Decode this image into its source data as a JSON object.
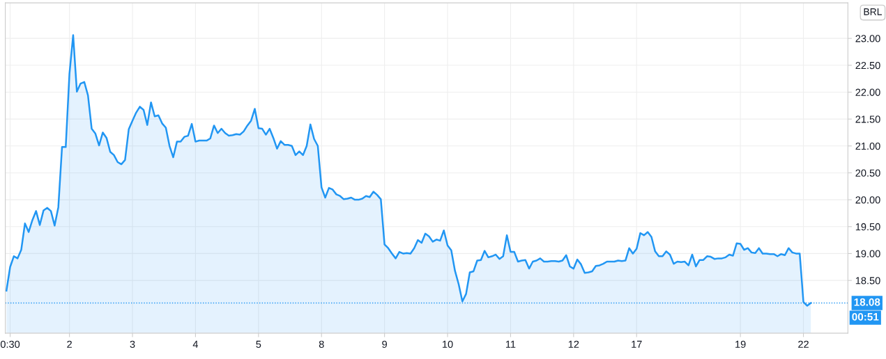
{
  "chart_data": {
    "type": "area",
    "categories": [
      null,
      "0:30",
      null,
      null,
      null,
      null,
      null,
      null,
      null,
      null,
      null,
      null,
      null,
      null,
      null,
      null,
      null,
      "2",
      null,
      null,
      null,
      null,
      null,
      null,
      null,
      null,
      null,
      null,
      null,
      null,
      null,
      null,
      null,
      null,
      "3",
      null,
      null,
      null,
      null,
      null,
      null,
      null,
      null,
      null,
      null,
      null,
      null,
      null,
      null,
      null,
      null,
      "4",
      null,
      null,
      null,
      null,
      null,
      null,
      null,
      null,
      null,
      null,
      null,
      null,
      null,
      null,
      null,
      null,
      "5",
      null,
      null,
      null,
      null,
      null,
      null,
      null,
      null,
      null,
      null,
      null,
      null,
      null,
      null,
      null,
      null,
      "8",
      null,
      null,
      null,
      null,
      null,
      null,
      null,
      null,
      null,
      null,
      null,
      null,
      null,
      null,
      null,
      null,
      "9",
      null,
      null,
      null,
      null,
      null,
      null,
      null,
      null,
      null,
      null,
      null,
      null,
      null,
      null,
      null,
      null,
      "10",
      null,
      null,
      null,
      null,
      null,
      null,
      null,
      null,
      null,
      null,
      null,
      null,
      null,
      null,
      null,
      null,
      "11",
      null,
      null,
      null,
      null,
      null,
      null,
      null,
      null,
      null,
      null,
      null,
      null,
      null,
      null,
      null,
      null,
      "12",
      null,
      null,
      null,
      null,
      null,
      null,
      null,
      null,
      null,
      null,
      null,
      null,
      null,
      null,
      null,
      null,
      "17",
      null,
      null,
      null,
      null,
      null,
      null,
      null,
      null,
      null,
      null,
      null,
      null,
      null,
      null,
      null,
      null,
      null,
      null,
      null,
      null,
      null,
      null,
      null,
      null,
      null,
      null,
      null,
      "19",
      null,
      null,
      null,
      null,
      null,
      null,
      null,
      null,
      null,
      null,
      null,
      null,
      null,
      null,
      null,
      null,
      "22",
      null,
      null
    ],
    "series": [
      {
        "color": "#2196f3",
        "values": [
          18.31,
          18.75,
          18.95,
          18.91,
          19.07,
          19.56,
          19.4,
          19.62,
          19.79,
          19.53,
          19.8,
          19.85,
          19.79,
          19.52,
          19.86,
          20.98,
          20.98,
          22.34,
          23.06,
          22.01,
          22.16,
          22.19,
          21.94,
          21.32,
          21.23,
          21.01,
          21.25,
          21.15,
          20.89,
          20.83,
          20.7,
          20.66,
          20.74,
          21.31,
          21.47,
          21.62,
          21.73,
          21.67,
          21.39,
          21.81,
          21.55,
          21.57,
          21.42,
          21.34,
          21.0,
          20.79,
          21.08,
          21.08,
          21.17,
          21.19,
          21.41,
          21.08,
          21.1,
          21.1,
          21.1,
          21.14,
          21.38,
          21.24,
          21.32,
          21.24,
          21.19,
          21.2,
          21.22,
          21.21,
          21.27,
          21.38,
          21.47,
          21.69,
          21.33,
          21.32,
          21.21,
          21.32,
          21.15,
          20.95,
          21.09,
          21.02,
          21.02,
          21.0,
          20.83,
          20.9,
          20.83,
          21.0,
          21.4,
          21.13,
          21.0,
          20.23,
          20.04,
          20.22,
          20.19,
          20.1,
          20.07,
          20.01,
          20.02,
          20.04,
          20.0,
          20.0,
          20.02,
          20.07,
          20.05,
          20.15,
          20.09,
          20.01,
          19.17,
          19.1,
          19.0,
          18.91,
          19.03,
          19.0,
          19.01,
          19.0,
          19.1,
          19.25,
          19.2,
          19.37,
          19.32,
          19.22,
          19.26,
          19.24,
          19.43,
          19.15,
          19.06,
          18.68,
          18.43,
          18.11,
          18.25,
          18.65,
          18.67,
          18.87,
          18.88,
          19.05,
          18.93,
          18.95,
          18.98,
          18.9,
          18.95,
          19.34,
          19.03,
          19.03,
          18.85,
          18.87,
          18.88,
          18.72,
          18.85,
          18.87,
          18.91,
          18.85,
          18.85,
          18.86,
          18.86,
          18.85,
          18.87,
          18.97,
          18.76,
          18.72,
          18.89,
          18.8,
          18.64,
          18.65,
          18.67,
          18.77,
          18.78,
          18.81,
          18.85,
          18.85,
          18.85,
          18.87,
          18.86,
          18.87,
          19.1,
          19.0,
          19.09,
          19.38,
          19.34,
          19.4,
          19.31,
          19.04,
          18.95,
          18.95,
          19.04,
          18.98,
          18.81,
          18.85,
          18.84,
          18.85,
          18.78,
          18.98,
          18.76,
          18.88,
          18.88,
          18.95,
          18.94,
          18.9,
          18.91,
          18.91,
          18.93,
          18.98,
          18.96,
          19.19,
          19.18,
          19.07,
          19.1,
          19.02,
          19.01,
          19.1,
          19.0,
          19.0,
          18.99,
          18.99,
          18.95,
          18.99,
          18.97,
          19.1,
          19.02,
          19.0,
          19.0,
          18.1,
          18.03,
          18.08
        ]
      }
    ],
    "ylim": [
      17.52,
      23.66
    ],
    "yticks": [
      {
        "value": 18.5,
        "label": "18.50"
      },
      {
        "value": 19,
        "label": "19.00"
      },
      {
        "value": 19.5,
        "label": "19.50"
      },
      {
        "value": 20,
        "label": "20.00"
      },
      {
        "value": 20.5,
        "label": "20.50"
      },
      {
        "value": 21,
        "label": "21.00"
      },
      {
        "value": 21.5,
        "label": "21.50"
      },
      {
        "value": 22,
        "label": "22.00"
      },
      {
        "value": 22.5,
        "label": "22.50"
      },
      {
        "value": 23,
        "label": "23.00"
      }
    ],
    "grid": true,
    "ref_lines": [
      {
        "axis": "y",
        "value": 18.08,
        "label": "18.08",
        "color": "#2196f3",
        "line_style": "dotted"
      }
    ],
    "annotations": [
      "BRL",
      "00:51"
    ]
  }
}
